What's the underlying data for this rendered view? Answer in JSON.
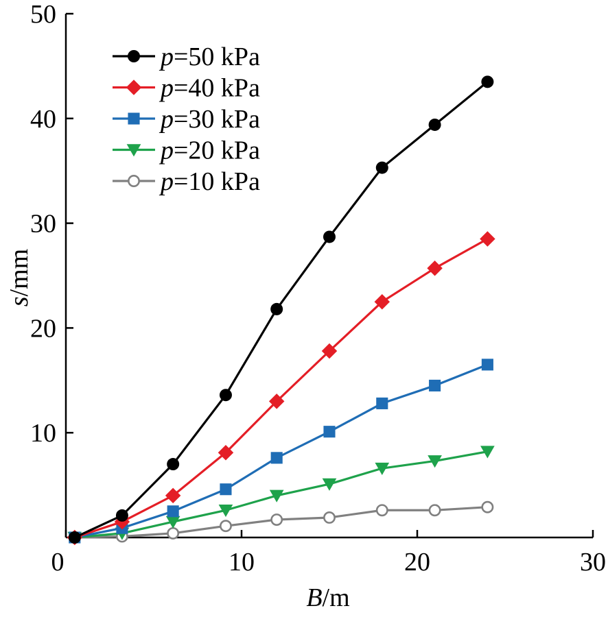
{
  "chart_data": {
    "type": "line",
    "x": [
      0.5,
      3.2,
      6.1,
      9.1,
      12,
      15,
      18,
      21,
      24
    ],
    "series": [
      {
        "name": "p=50 kPa",
        "label_var": "p",
        "label_rest": "=50 kPa",
        "color": "#000000",
        "marker": "circle",
        "values": [
          0,
          2.1,
          7.0,
          13.6,
          21.8,
          28.7,
          35.3,
          39.4,
          43.5
        ]
      },
      {
        "name": "p=40 kPa",
        "label_var": "p",
        "label_rest": "=40 kPa",
        "color": "#e41e26",
        "marker": "diamond",
        "values": [
          0,
          1.5,
          4.0,
          8.1,
          13.0,
          17.8,
          22.5,
          25.7,
          28.5
        ]
      },
      {
        "name": "p=30 kPa",
        "label_var": "p",
        "label_rest": "=30 kPa",
        "color": "#1f6db5",
        "marker": "square",
        "values": [
          0,
          0.9,
          2.5,
          4.6,
          7.6,
          10.1,
          12.8,
          14.5,
          16.5
        ]
      },
      {
        "name": "p=20 kPa",
        "label_var": "p",
        "label_rest": "=20 kPa",
        "color": "#1ea24b",
        "marker": "triangle-down",
        "values": [
          0,
          0.4,
          1.5,
          2.6,
          4.0,
          5.1,
          6.6,
          7.3,
          8.2
        ]
      },
      {
        "name": "p=10 kPa",
        "label_var": "p",
        "label_rest": "=10 kPa",
        "color": "#808080",
        "marker": "open-circle",
        "values": [
          0,
          0.1,
          0.4,
          1.1,
          1.7,
          1.9,
          2.6,
          2.6,
          2.9
        ]
      }
    ],
    "xlabel_var": "B",
    "xlabel_unit": "/m",
    "ylabel_var": "s",
    "ylabel_unit": "/mm",
    "xlim": [
      0,
      30
    ],
    "ylim": [
      0,
      50
    ],
    "xticks": [
      0,
      10,
      20,
      30
    ],
    "yticks": [
      10,
      20,
      30,
      40,
      50
    ],
    "grid": false,
    "legend": "top-left"
  }
}
